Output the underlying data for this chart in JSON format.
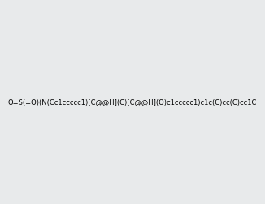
{
  "smiles": "O=S(=O)(N(Cc1ccccc1)[C@@H](C)[C@@H](O)c1ccccc1)c1c(C)cc(C)cc1C",
  "image_size": 300,
  "background_color": "#e8eaeb",
  "title": ""
}
